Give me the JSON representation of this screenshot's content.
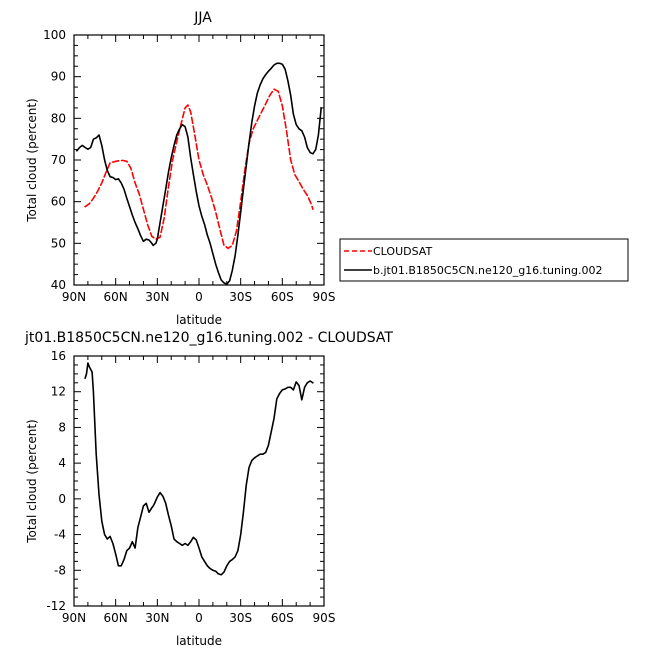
{
  "chart_data": [
    {
      "type": "line",
      "title": "JJA",
      "xlabel": "latitude",
      "ylabel": "Total cloud (percent)",
      "x_tick_labels": [
        "90N",
        "60N",
        "30N",
        "0",
        "30S",
        "60S",
        "90S"
      ],
      "x_ticks": [
        90,
        60,
        30,
        0,
        -30,
        -60,
        -90
      ],
      "xlim": [
        90,
        -90
      ],
      "y_ticks": [
        40,
        50,
        60,
        70,
        80,
        90,
        100
      ],
      "ylim": [
        40,
        100
      ],
      "grid": false,
      "legend_position": "right",
      "series": [
        {
          "name": "CLOUDSAT",
          "color": "#ff0000",
          "dash": "dashed",
          "x": [
            82,
            79,
            76,
            73,
            70,
            67,
            64,
            61,
            58,
            55,
            52,
            49,
            46,
            43,
            40,
            37,
            34,
            31,
            28,
            25,
            22,
            19,
            16,
            13,
            10,
            8,
            6,
            3,
            0,
            -3,
            -6,
            -9,
            -12,
            -15,
            -18,
            -21,
            -24,
            -27,
            -30,
            -33,
            -36,
            -39,
            -42,
            -45,
            -48,
            -51,
            -54,
            -57,
            -60,
            -63,
            -66,
            -69,
            -72,
            -75,
            -78,
            -81,
            -82
          ],
          "y": [
            58.8,
            59.5,
            60.8,
            62.5,
            64.5,
            67,
            69.3,
            69.6,
            69.8,
            69.9,
            69.7,
            68,
            64.5,
            61.8,
            58.2,
            54.5,
            51.7,
            51,
            51.5,
            56.2,
            63.5,
            70,
            74.5,
            78.5,
            82.5,
            83.2,
            81.5,
            76,
            70,
            66.5,
            64,
            61,
            57.5,
            53.5,
            49.5,
            48.8,
            49.5,
            53,
            60,
            67.5,
            74,
            77.5,
            79.5,
            81.5,
            83.5,
            85.5,
            87,
            86.5,
            83,
            77,
            70,
            66.5,
            64.8,
            63,
            61.5,
            59.3,
            58.2
          ]
        },
        {
          "name": "b.jt01.B1850C5CN.ne120_g16.tuning.002",
          "color": "#000000",
          "dash": "solid",
          "x": [
            88,
            86,
            84,
            82,
            80,
            78,
            76,
            74,
            72,
            70,
            68,
            66,
            64,
            62,
            60,
            58,
            56,
            54,
            52,
            50,
            48,
            46,
            44,
            42,
            40,
            38,
            36,
            34,
            33,
            32,
            31,
            30,
            29,
            28,
            26,
            24,
            22,
            20,
            18,
            16,
            14,
            12,
            10,
            8,
            6,
            4,
            2,
            0,
            -2,
            -4,
            -6,
            -8,
            -10,
            -12,
            -14,
            -16,
            -18,
            -20,
            -22,
            -24,
            -26,
            -28,
            -30,
            -32,
            -34,
            -36,
            -38,
            -40,
            -42,
            -44,
            -46,
            -48,
            -50,
            -52,
            -54,
            -56,
            -58,
            -60,
            -62,
            -64,
            -66,
            -68,
            -70,
            -72,
            -74,
            -76,
            -78,
            -80,
            -82,
            -84,
            -86,
            -88
          ],
          "y": [
            72.2,
            73,
            73.5,
            73,
            72.6,
            73,
            75,
            75.3,
            76,
            73.5,
            70,
            67.5,
            66,
            65.8,
            65.3,
            65.5,
            64.5,
            63,
            60.8,
            58.8,
            56.8,
            55,
            53.5,
            51.8,
            50.5,
            51,
            50.8,
            50,
            49.5,
            49.8,
            50,
            51,
            53,
            55,
            59,
            63,
            67,
            70.5,
            73.5,
            76,
            77.5,
            78.5,
            78,
            75.5,
            70.5,
            66.5,
            62.5,
            59,
            56.5,
            54.5,
            52,
            50,
            47.5,
            45,
            43,
            41.2,
            40.5,
            40.2,
            41,
            43.5,
            47,
            52,
            57.5,
            63,
            68.5,
            74,
            79,
            83,
            86,
            88,
            89.5,
            90.5,
            91.3,
            92,
            92.8,
            93.2,
            93.2,
            93,
            91.8,
            89,
            85.5,
            81,
            78.5,
            77.5,
            77,
            75.5,
            73,
            71.8,
            71.5,
            72.5,
            76,
            82.5
          ]
        }
      ]
    },
    {
      "type": "line",
      "title": "jt01.B1850C5CN.ne120_g16.tuning.002 - CLOUDSAT",
      "xlabel": "latitude",
      "ylabel": "Total cloud (percent)",
      "x_tick_labels": [
        "90N",
        "60N",
        "30N",
        "0",
        "30S",
        "60S",
        "90S"
      ],
      "x_ticks": [
        90,
        60,
        30,
        0,
        -30,
        -60,
        -90
      ],
      "xlim": [
        90,
        -90
      ],
      "y_ticks": [
        -12,
        -8,
        -4,
        0,
        4,
        8,
        12,
        16
      ],
      "ylim": [
        -12,
        16
      ],
      "grid": false,
      "series": [
        {
          "color": "#000000",
          "dash": "solid",
          "x": [
            82,
            81,
            80,
            79,
            78,
            77,
            76,
            74,
            72,
            70,
            68,
            66,
            64,
            62,
            60,
            58,
            56,
            54,
            52,
            50,
            48,
            46,
            44,
            42,
            40,
            38,
            36,
            34,
            33,
            32,
            30,
            28,
            26,
            24,
            22,
            20,
            18,
            16,
            14,
            12,
            10,
            8,
            6,
            4,
            2,
            0,
            -2,
            -4,
            -6,
            -8,
            -10,
            -12,
            -14,
            -16,
            -18,
            -20,
            -22,
            -24,
            -26,
            -28,
            -30,
            -32,
            -34,
            -36,
            -38,
            -40,
            -42,
            -44,
            -46,
            -48,
            -50,
            -52,
            -54,
            -56,
            -58,
            -60,
            -62,
            -64,
            -66,
            -68,
            -70,
            -72,
            -74,
            -76,
            -78,
            -80,
            -82
          ],
          "y": [
            13.5,
            14,
            15.2,
            14.8,
            14.5,
            14.2,
            12,
            5,
            0.5,
            -2.5,
            -4,
            -4.5,
            -4.2,
            -5,
            -6.2,
            -7.5,
            -7.5,
            -6.8,
            -5.8,
            -5.5,
            -4.8,
            -5.5,
            -3.2,
            -2,
            -0.8,
            -0.5,
            -1.5,
            -1,
            -0.8,
            -0.5,
            0.2,
            0.7,
            0.3,
            -0.5,
            -1.8,
            -3,
            -4.5,
            -4.8,
            -5,
            -5.2,
            -5,
            -5.2,
            -4.8,
            -4.3,
            -4.6,
            -5.5,
            -6.5,
            -7,
            -7.5,
            -7.8,
            -8,
            -8.1,
            -8.4,
            -8.5,
            -8.2,
            -7.5,
            -7,
            -6.8,
            -6.5,
            -5.8,
            -4,
            -1.5,
            1.5,
            3.5,
            4.3,
            4.6,
            4.8,
            5,
            5,
            5.2,
            6,
            7.5,
            9,
            11.2,
            11.8,
            12.2,
            12.3,
            12.5,
            12.5,
            12.2,
            13.1,
            12.7,
            11.1,
            12.5,
            13,
            13.2,
            13
          ]
        }
      ]
    }
  ]
}
